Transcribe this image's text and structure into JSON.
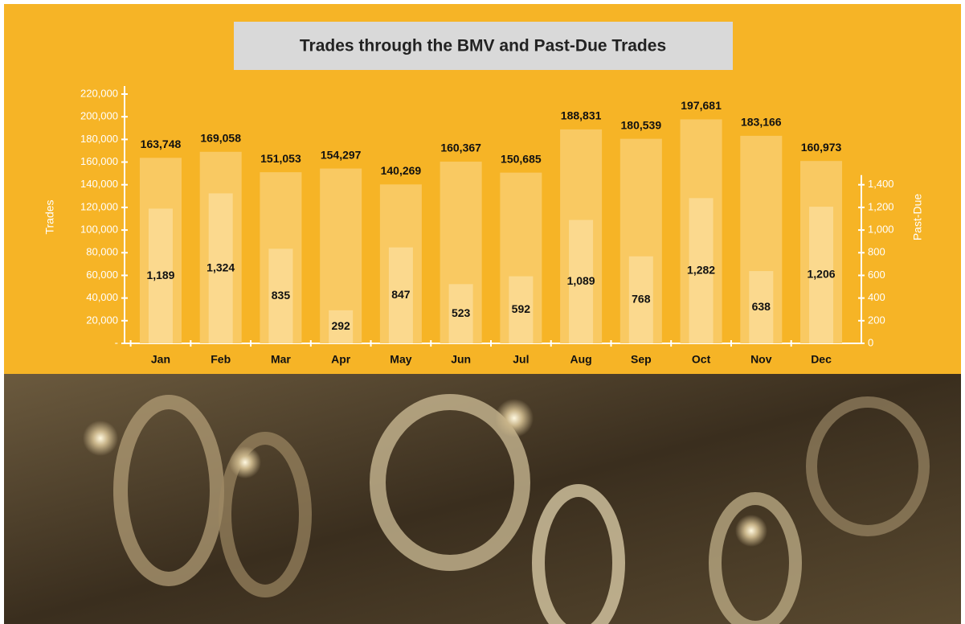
{
  "chart_data": {
    "type": "bar",
    "title": "Trades through the BMV and Past-Due Trades",
    "categories": [
      "Jan",
      "Feb",
      "Mar",
      "Apr",
      "May",
      "Jun",
      "Jul",
      "Aug",
      "Sep",
      "Oct",
      "Nov",
      "Dec"
    ],
    "y_label": "Trades",
    "y2_label": "Past-Due",
    "series": [
      {
        "name": "Trades",
        "color": "#f9c962",
        "values": [
          163748,
          169058,
          151053,
          154297,
          140269,
          160367,
          150685,
          188831,
          180539,
          197681,
          183166,
          160973
        ],
        "value_labels": [
          "163,748",
          "169,058",
          "151,053",
          "154,297",
          "140,269",
          "160,367",
          "150,685",
          "188,831",
          "180,539",
          "197,681",
          "183,166",
          "160,973"
        ]
      },
      {
        "name": "Past-Due",
        "color": "#fbd98e",
        "axis": "y2",
        "values": [
          1189,
          1324,
          835,
          292,
          847,
          523,
          592,
          1089,
          768,
          1282,
          638,
          1206
        ],
        "value_labels": [
          "1,189",
          "1,324",
          "835",
          "292",
          "847",
          "523",
          "592",
          "1,089",
          "768",
          "1,282",
          "638",
          "1,206"
        ]
      }
    ],
    "ylim": [
      0,
      220000
    ],
    "yticks": [
      {
        "value": 0,
        "label": "-"
      },
      {
        "value": 20000,
        "label": "20,000"
      },
      {
        "value": 40000,
        "label": "40,000"
      },
      {
        "value": 60000,
        "label": "60,000"
      },
      {
        "value": 80000,
        "label": "80,000"
      },
      {
        "value": 100000,
        "label": "100,000"
      },
      {
        "value": 120000,
        "label": "120,000"
      },
      {
        "value": 140000,
        "label": "140,000"
      },
      {
        "value": 160000,
        "label": "160,000"
      },
      {
        "value": 180000,
        "label": "180,000"
      },
      {
        "value": 200000,
        "label": "200,000"
      },
      {
        "value": 220000,
        "label": "220,000"
      }
    ],
    "y2lim": [
      0,
      2200
    ],
    "y2ticks": [
      0,
      200,
      400,
      600,
      800,
      {
        "value": 1000,
        "label": "1,000"
      },
      {
        "value": 1200,
        "label": "1,200"
      },
      {
        "value": 1400,
        "label": "1,400"
      }
    ],
    "grid": false
  }
}
